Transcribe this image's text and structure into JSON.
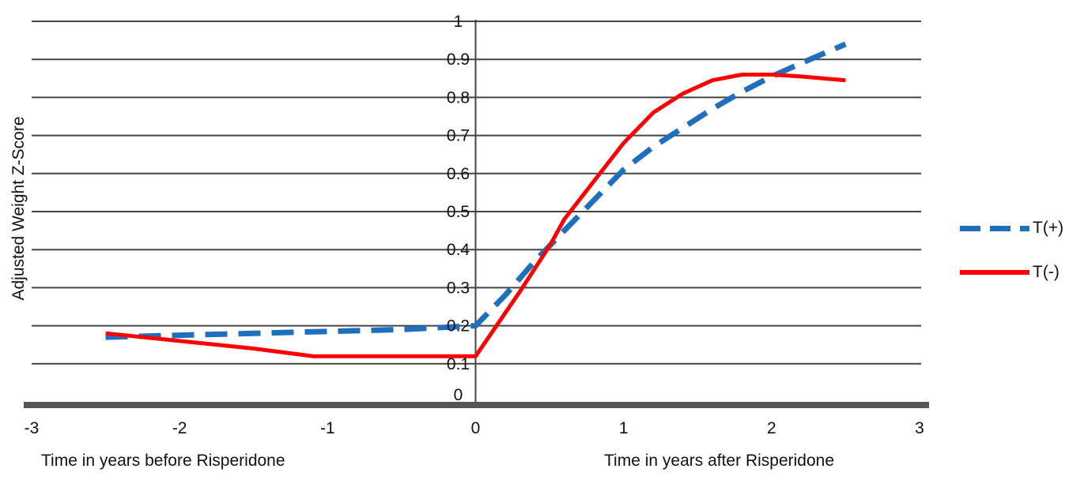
{
  "chart_data": {
    "type": "line",
    "title": "",
    "xlabel_left": "Time in years before Risperidone",
    "xlabel_right": "Time in years after Risperidone",
    "ylabel": "Adjusted Weight Z-Score",
    "xlim": [
      -3,
      3
    ],
    "ylim": [
      0,
      1
    ],
    "x_ticks": [
      "-3",
      "-2",
      "-1",
      "0",
      "1",
      "2",
      "3"
    ],
    "y_ticks": [
      "0",
      "0.1",
      "0.2",
      "0.3",
      "0.4",
      "0.5",
      "0.6",
      "0.7",
      "0.8",
      "0.9",
      "1"
    ],
    "grid": true,
    "legend_position": "right",
    "series": [
      {
        "name": "T(+)",
        "style": "dashed",
        "color": "#1f6fbf",
        "points": [
          [
            -2.5,
            0.17
          ],
          [
            -1.5,
            0.18
          ],
          [
            -1.0,
            0.185
          ],
          [
            -0.5,
            0.19
          ],
          [
            0.0,
            0.2
          ],
          [
            0.2,
            0.28
          ],
          [
            0.4,
            0.37
          ],
          [
            0.6,
            0.45
          ],
          [
            0.8,
            0.53
          ],
          [
            1.0,
            0.61
          ],
          [
            1.2,
            0.67
          ],
          [
            1.4,
            0.72
          ],
          [
            1.6,
            0.77
          ],
          [
            1.8,
            0.815
          ],
          [
            2.0,
            0.855
          ],
          [
            2.2,
            0.89
          ],
          [
            2.5,
            0.94
          ]
        ]
      },
      {
        "name": "T(-)",
        "style": "solid",
        "color": "#ff0000",
        "points": [
          [
            -2.5,
            0.18
          ],
          [
            -2.0,
            0.16
          ],
          [
            -1.5,
            0.14
          ],
          [
            -1.1,
            0.12
          ],
          [
            -0.5,
            0.12
          ],
          [
            0.0,
            0.12
          ],
          [
            0.3,
            0.29
          ],
          [
            0.5,
            0.41
          ],
          [
            0.6,
            0.48
          ],
          [
            0.8,
            0.58
          ],
          [
            1.0,
            0.68
          ],
          [
            1.2,
            0.76
          ],
          [
            1.4,
            0.81
          ],
          [
            1.6,
            0.845
          ],
          [
            1.8,
            0.86
          ],
          [
            2.0,
            0.86
          ],
          [
            2.2,
            0.855
          ],
          [
            2.5,
            0.845
          ]
        ]
      }
    ]
  },
  "legend": {
    "items": [
      {
        "label": "T(+)"
      },
      {
        "label": "T(-)"
      }
    ]
  }
}
